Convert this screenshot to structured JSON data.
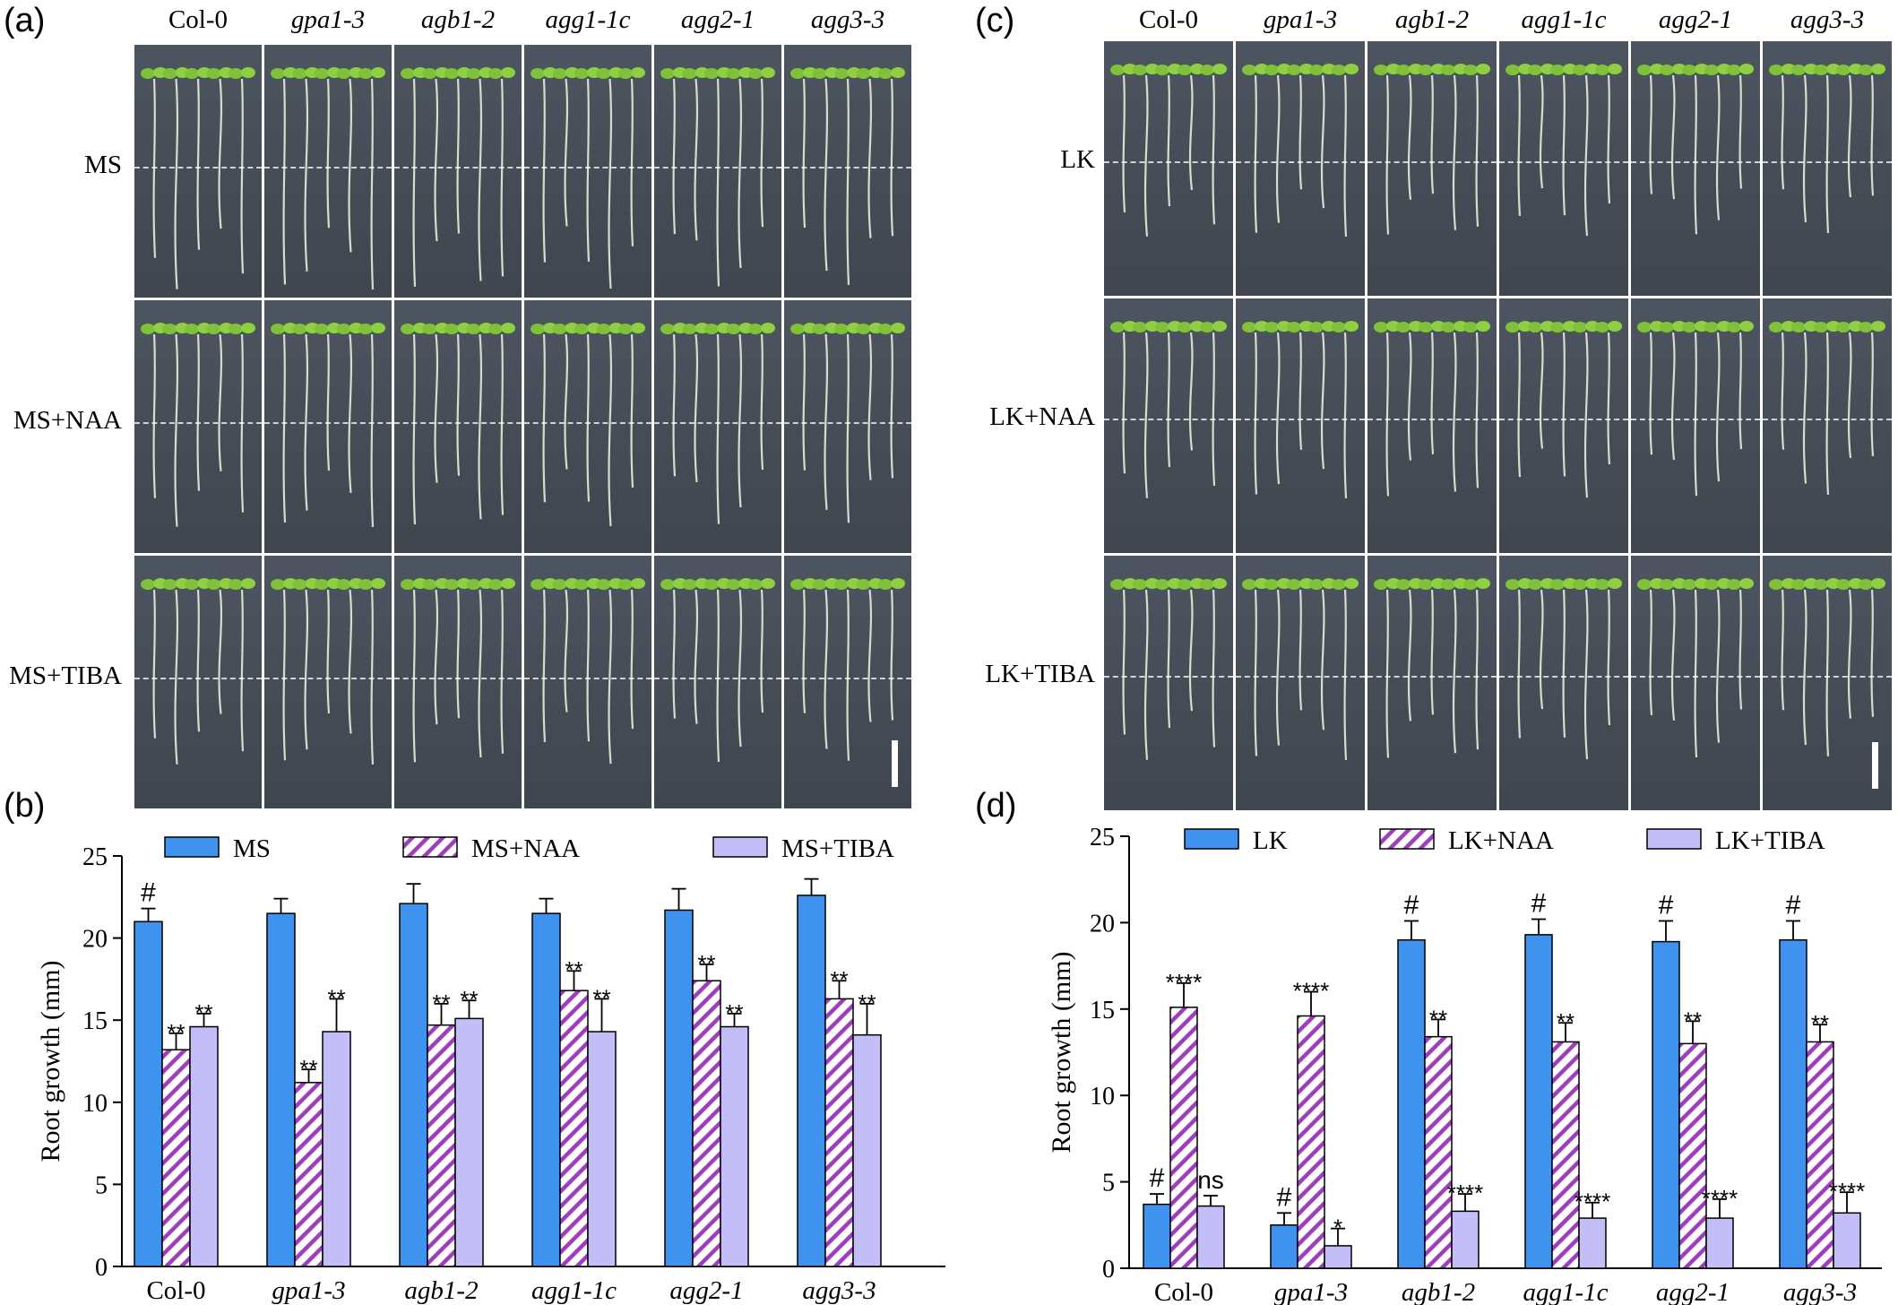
{
  "panels": {
    "a": {
      "letter": "(a)"
    },
    "b": {
      "letter": "(b)"
    },
    "c": {
      "letter": "(c)"
    },
    "d": {
      "letter": "(d)"
    }
  },
  "genotypes": [
    "Col-0",
    "gpa1-3",
    "agb1-2",
    "agg1-1c",
    "agg2-1",
    "agg3-3"
  ],
  "photo_a": {
    "rows": [
      "MS",
      "MS+NAA",
      "MS+TIBA"
    ]
  },
  "photo_c": {
    "rows": [
      "LK",
      "LK+NAA",
      "LK+TIBA"
    ]
  },
  "colors": {
    "solid": "#3f93ee",
    "hatch": "#a03cc0",
    "light": "#c3bdf8"
  },
  "chart_data": [
    {
      "type": "bar",
      "panel": "b",
      "categories": [
        "Col-0",
        "gpa1-3",
        "agb1-2",
        "agg1-1c",
        "agg2-1",
        "agg3-3"
      ],
      "ylabel": "Root growth (mm)",
      "ylim": [
        0,
        25
      ],
      "yticks": [
        "0",
        "5",
        "10",
        "15",
        "20",
        "25"
      ],
      "legend_position": "top",
      "series": [
        {
          "name": "MS",
          "values": [
            21.0,
            21.5,
            22.1,
            21.5,
            21.7,
            22.6
          ],
          "errors": [
            0.8,
            0.9,
            1.2,
            0.9,
            1.3,
            1.0
          ],
          "labels": [
            "#",
            "",
            "",
            "",
            "",
            ""
          ]
        },
        {
          "name": "MS+NAA",
          "values": [
            13.2,
            11.2,
            14.7,
            16.8,
            17.4,
            16.3
          ],
          "errors": [
            1.0,
            0.8,
            1.3,
            1.2,
            1.0,
            1.1
          ],
          "labels": [
            "**",
            "**",
            "**",
            "**",
            "**",
            "**"
          ]
        },
        {
          "name": "MS+TIBA",
          "values": [
            14.6,
            14.3,
            15.1,
            14.3,
            14.6,
            14.1
          ],
          "errors": [
            0.8,
            2.0,
            1.1,
            2.0,
            0.8,
            1.9
          ],
          "labels": [
            "**",
            "**",
            "**",
            "**",
            "**",
            "**"
          ]
        }
      ]
    },
    {
      "type": "bar",
      "panel": "d",
      "categories": [
        "Col-0",
        "gpa1-3",
        "agb1-2",
        "agg1-1c",
        "agg2-1",
        "agg3-3"
      ],
      "ylabel": "Root growth (mm)",
      "ylim": [
        0,
        25
      ],
      "yticks": [
        "0",
        "5",
        "10",
        "15",
        "20",
        "25"
      ],
      "legend_position": "top",
      "series": [
        {
          "name": "LK",
          "values": [
            3.7,
            2.5,
            19.0,
            19.3,
            18.9,
            19.0
          ],
          "errors": [
            0.6,
            0.7,
            1.1,
            0.9,
            1.2,
            1.1
          ],
          "labels": [
            "#",
            "#",
            "#",
            "#",
            "#",
            "#"
          ]
        },
        {
          "name": "LK+NAA",
          "values": [
            15.1,
            14.6,
            13.4,
            13.1,
            13.0,
            13.1
          ],
          "errors": [
            1.4,
            1.4,
            1.0,
            1.1,
            1.3,
            1.0
          ],
          "labels": [
            "****",
            "****",
            "**",
            "**",
            "**",
            "**"
          ]
        },
        {
          "name": "LK+TIBA",
          "values": [
            3.6,
            1.3,
            3.3,
            2.9,
            2.9,
            3.2
          ],
          "errors": [
            0.6,
            1.0,
            1.0,
            0.9,
            1.1,
            1.2
          ],
          "labels": [
            "ns",
            "*",
            "****",
            "****",
            "****",
            "****"
          ]
        }
      ]
    }
  ]
}
